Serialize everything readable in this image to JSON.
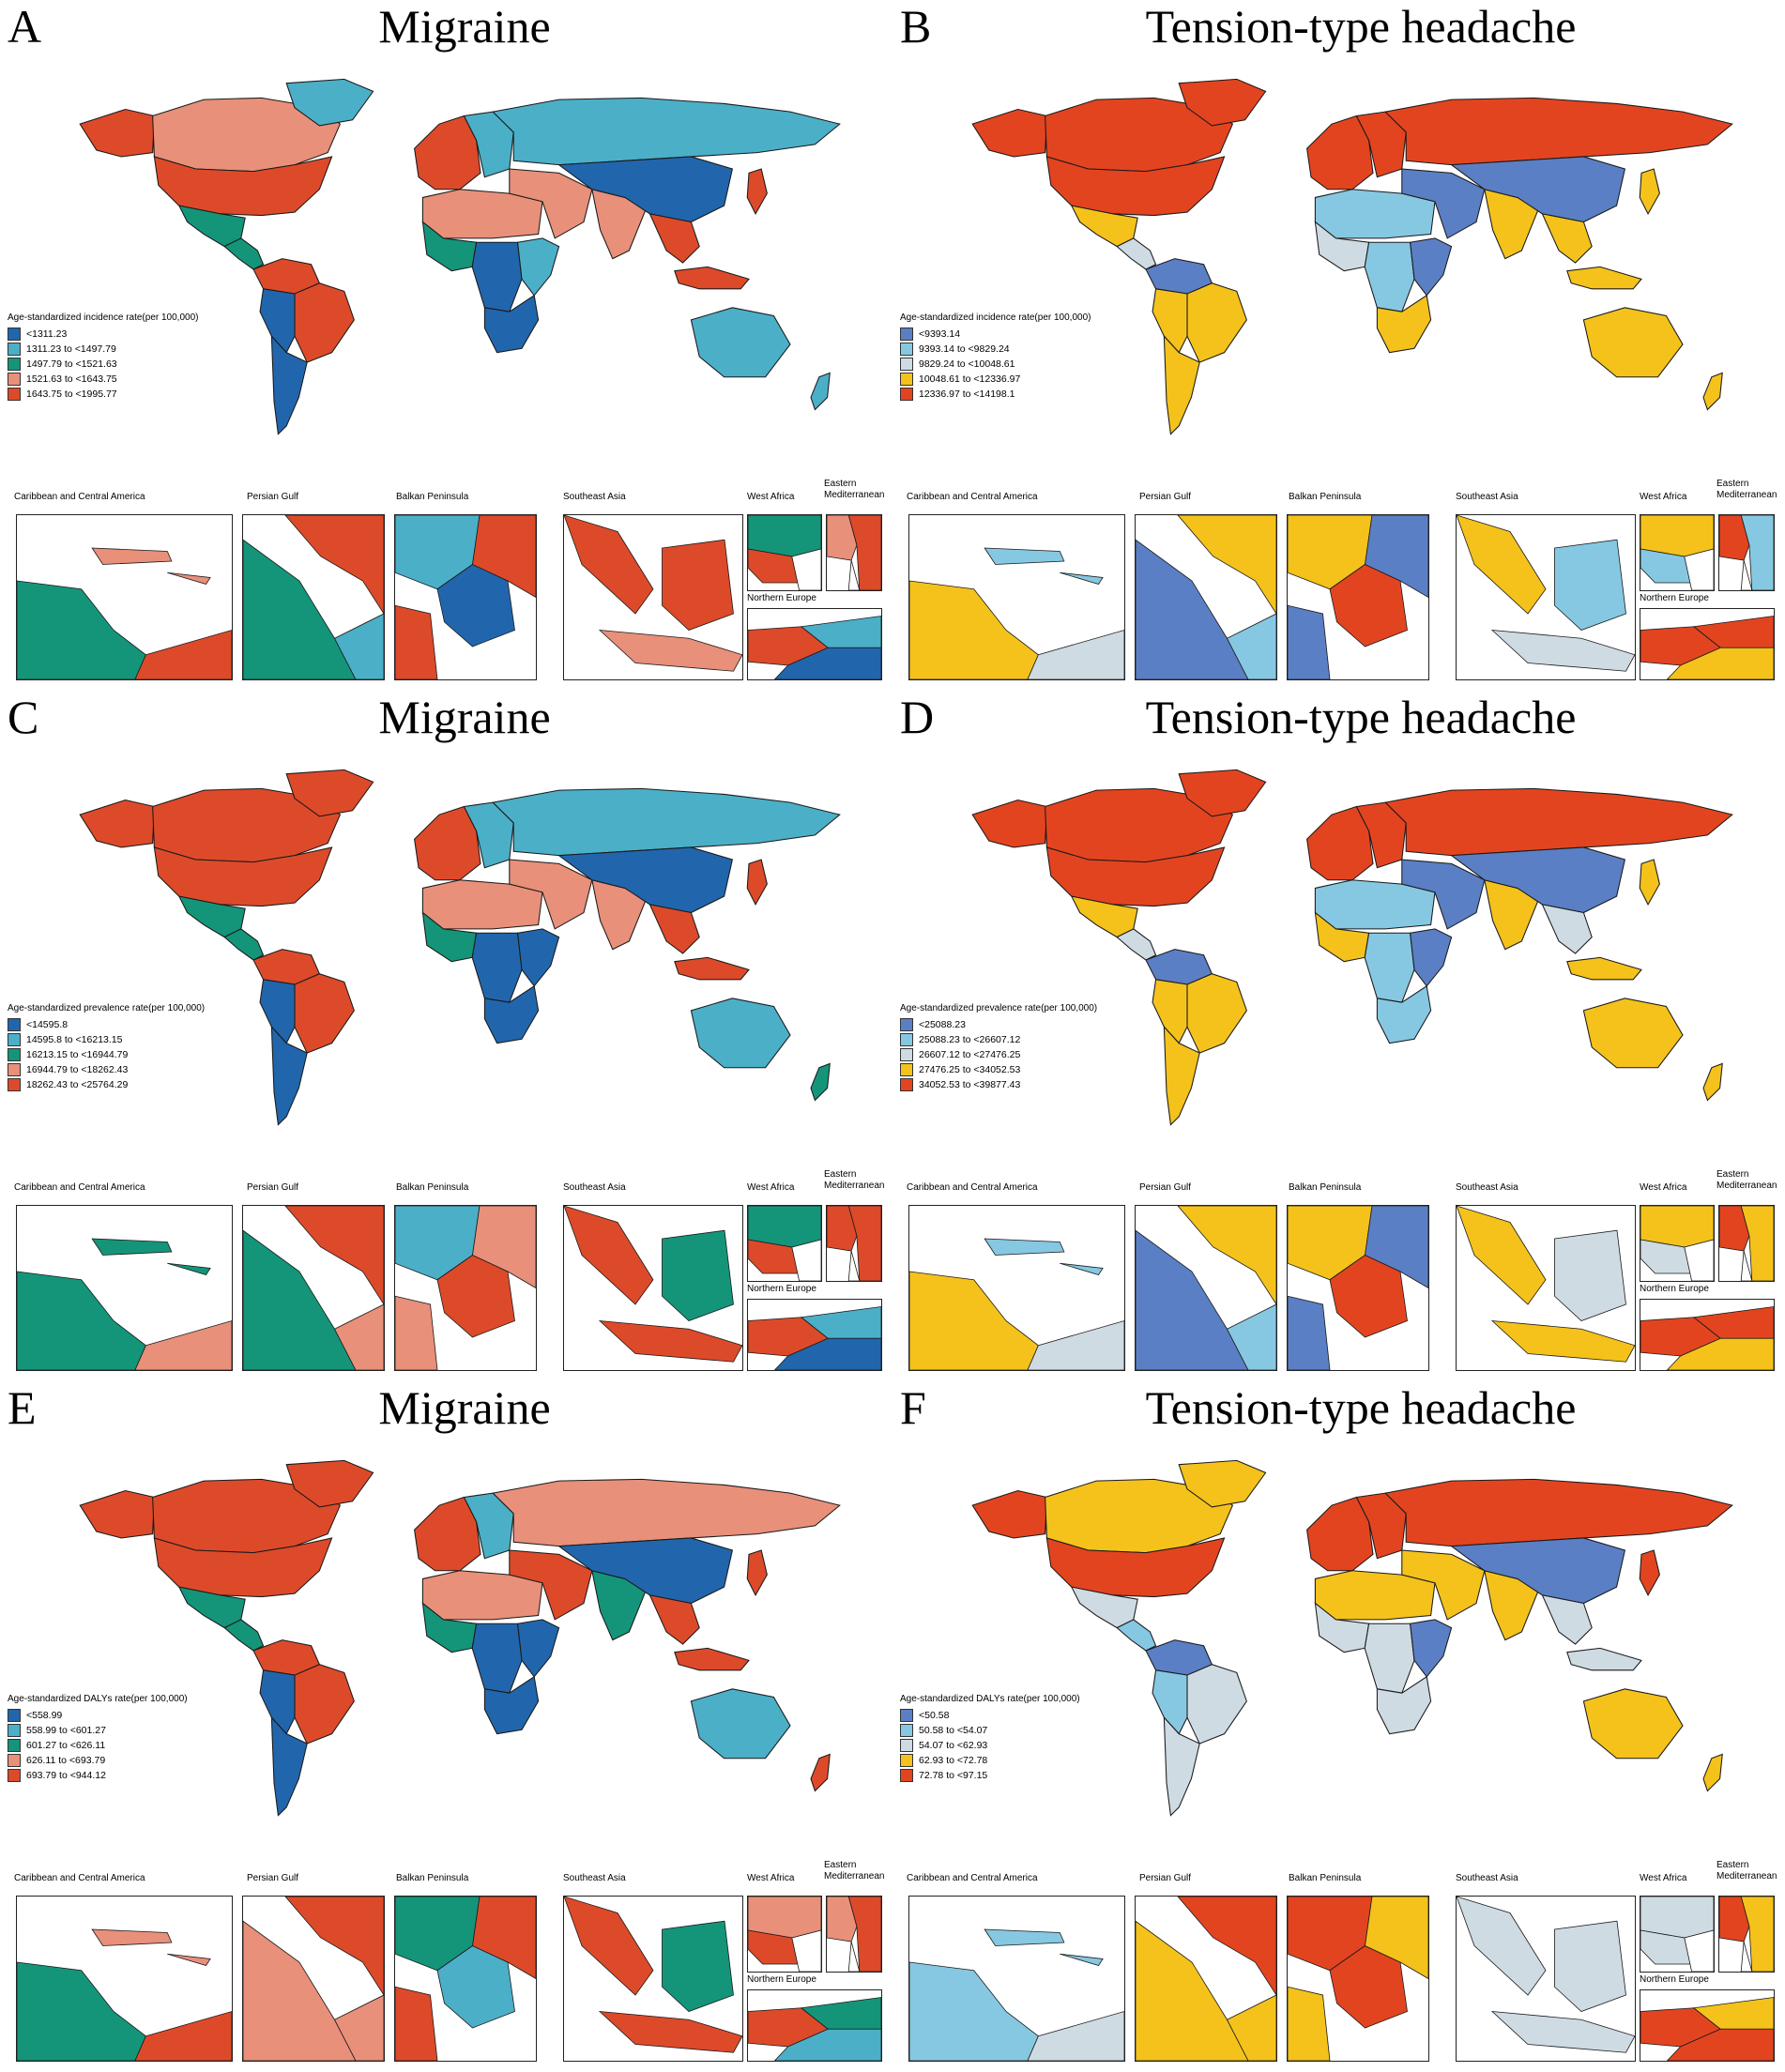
{
  "palettes": {
    "migraine": [
      "#2166ac",
      "#4bafc8",
      "#14957a",
      "#e8907a",
      "#dd4a2a"
    ],
    "tth": [
      "#5b7fc4",
      "#86c8e2",
      "#cfdbe3",
      "#f4c21b",
      "#e34420"
    ]
  },
  "inset_labels": {
    "caribbean": "Caribbean and Central America",
    "persian_gulf": "Persian Gulf",
    "balkan": "Balkan Peninsula",
    "southeast_asia": "Southeast Asia",
    "west_africa": "West Africa",
    "eastern_med": "Eastern Mediterranean",
    "northern_europe": "Northern Europe"
  },
  "panels": [
    {
      "letter": "A",
      "title": "Migraine",
      "palette": "migraine",
      "legend_title": "Age-standardized incidence rate(per 100,000)",
      "legend": [
        "<1311.23",
        "1311.23 to <1497.79",
        "1497.79 to <1521.63",
        "1521.63 to <1643.75",
        "1643.75 to <1995.77"
      ],
      "regions": {
        "canada": 3,
        "alaska": 4,
        "usa": 4,
        "mexico": 2,
        "central_america": 2,
        "south_america_n": 4,
        "brazil": 4,
        "south_america_w": 0,
        "argentina": 0,
        "greenland": 1,
        "europe_w": 4,
        "europe_e": 1,
        "russia": 1,
        "n_africa": 3,
        "w_africa": 2,
        "c_africa": 0,
        "e_africa": 1,
        "s_africa": 0,
        "middle_east": 3,
        "india": 3,
        "china": 0,
        "se_asia": 4,
        "indonesia": 4,
        "japan": 4,
        "australia": 1,
        "nz": 1
      },
      "insets": {
        "caribbean": [
          2,
          3,
          4
        ],
        "persian_gulf": [
          2,
          4,
          1
        ],
        "balkan": [
          1,
          0,
          4
        ],
        "southeast_asia": [
          4,
          4,
          3
        ],
        "west_africa": [
          2,
          4
        ],
        "eastern_med": [
          4,
          3
        ],
        "northern_europe": [
          4,
          1,
          0
        ]
      }
    },
    {
      "letter": "B",
      "title": "Tension-type headache",
      "palette": "tth",
      "legend_title": "Age-standardized incidence rate(per 100,000)",
      "legend": [
        "<9393.14",
        "9393.14 to <9829.24",
        "9829.24 to <10048.61",
        "10048.61 to <12336.97",
        "12336.97 to <14198.1"
      ],
      "regions": {
        "canada": 4,
        "alaska": 4,
        "usa": 4,
        "mexico": 3,
        "central_america": 2,
        "south_america_n": 0,
        "brazil": 3,
        "south_america_w": 3,
        "argentina": 3,
        "greenland": 4,
        "europe_w": 4,
        "europe_e": 4,
        "russia": 4,
        "n_africa": 1,
        "w_africa": 2,
        "c_africa": 1,
        "e_africa": 0,
        "s_africa": 3,
        "middle_east": 0,
        "india": 3,
        "china": 0,
        "se_asia": 3,
        "indonesia": 3,
        "japan": 3,
        "australia": 3,
        "nz": 3
      },
      "insets": {
        "caribbean": [
          3,
          1,
          2
        ],
        "persian_gulf": [
          0,
          3,
          1
        ],
        "balkan": [
          3,
          4,
          0
        ],
        "southeast_asia": [
          3,
          1,
          2
        ],
        "west_africa": [
          3,
          1
        ],
        "eastern_med": [
          1,
          4
        ],
        "northern_europe": [
          4,
          4,
          3
        ]
      }
    },
    {
      "letter": "C",
      "title": "Migraine",
      "palette": "migraine",
      "legend_title": "Age-standardized prevalence rate(per 100,000)",
      "legend": [
        "<14595.8",
        "14595.8 to <16213.15",
        "16213.15 to <16944.79",
        "16944.79 to <18262.43",
        "18262.43 to <25764.29"
      ],
      "regions": {
        "canada": 4,
        "alaska": 4,
        "usa": 4,
        "mexico": 2,
        "central_america": 2,
        "south_america_n": 4,
        "brazil": 4,
        "south_america_w": 0,
        "argentina": 0,
        "greenland": 4,
        "europe_w": 4,
        "europe_e": 1,
        "russia": 1,
        "n_africa": 3,
        "w_africa": 2,
        "c_africa": 0,
        "e_africa": 0,
        "s_africa": 0,
        "middle_east": 3,
        "india": 3,
        "china": 0,
        "se_asia": 4,
        "indonesia": 4,
        "japan": 4,
        "australia": 1,
        "nz": 2
      },
      "insets": {
        "caribbean": [
          2,
          2,
          3
        ],
        "persian_gulf": [
          2,
          4,
          3
        ],
        "balkan": [
          1,
          4,
          3
        ],
        "southeast_asia": [
          4,
          2,
          4
        ],
        "west_africa": [
          2,
          4
        ],
        "eastern_med": [
          4,
          4
        ],
        "northern_europe": [
          4,
          1,
          0
        ]
      }
    },
    {
      "letter": "D",
      "title": "Tension-type headache",
      "palette": "tth",
      "legend_title": "Age-standardized prevalence rate(per 100,000)",
      "legend": [
        "<25088.23",
        "25088.23 to <26607.12",
        "26607.12 to <27476.25",
        "27476.25 to <34052.53",
        "34052.53 to <39877.43"
      ],
      "regions": {
        "canada": 4,
        "alaska": 4,
        "usa": 4,
        "mexico": 3,
        "central_america": 2,
        "south_america_n": 0,
        "brazil": 3,
        "south_america_w": 3,
        "argentina": 3,
        "greenland": 4,
        "europe_w": 4,
        "europe_e": 4,
        "russia": 4,
        "n_africa": 1,
        "w_africa": 3,
        "c_africa": 1,
        "e_africa": 0,
        "s_africa": 1,
        "middle_east": 0,
        "india": 3,
        "china": 0,
        "se_asia": 2,
        "indonesia": 3,
        "japan": 3,
        "australia": 3,
        "nz": 3
      },
      "insets": {
        "caribbean": [
          3,
          1,
          2
        ],
        "persian_gulf": [
          0,
          3,
          1
        ],
        "balkan": [
          3,
          4,
          0
        ],
        "southeast_asia": [
          3,
          2,
          3
        ],
        "west_africa": [
          3,
          2
        ],
        "eastern_med": [
          3,
          4
        ],
        "northern_europe": [
          4,
          4,
          3
        ]
      }
    },
    {
      "letter": "E",
      "title": "Migraine",
      "palette": "migraine",
      "legend_title": "Age-standardized DALYs rate(per 100,000)",
      "legend": [
        "<558.99",
        "558.99 to <601.27",
        "601.27 to <626.11",
        "626.11 to <693.79",
        "693.79 to <944.12"
      ],
      "regions": {
        "canada": 4,
        "alaska": 4,
        "usa": 4,
        "mexico": 2,
        "central_america": 2,
        "south_america_n": 4,
        "brazil": 4,
        "south_america_w": 0,
        "argentina": 0,
        "greenland": 4,
        "europe_w": 4,
        "europe_e": 1,
        "russia": 3,
        "n_africa": 3,
        "w_africa": 2,
        "c_africa": 0,
        "e_africa": 0,
        "s_africa": 0,
        "middle_east": 4,
        "india": 2,
        "china": 0,
        "se_asia": 4,
        "indonesia": 4,
        "japan": 4,
        "australia": 1,
        "nz": 4
      },
      "insets": {
        "caribbean": [
          2,
          3,
          4
        ],
        "persian_gulf": [
          3,
          4,
          3
        ],
        "balkan": [
          2,
          1,
          4
        ],
        "southeast_asia": [
          4,
          2,
          4
        ],
        "west_africa": [
          3,
          4
        ],
        "eastern_med": [
          4,
          3
        ],
        "northern_europe": [
          4,
          2,
          1
        ]
      }
    },
    {
      "letter": "F",
      "title": "Tension-type headache",
      "palette": "tth",
      "legend_title": "Age-standardized DALYs rate(per 100,000)",
      "legend": [
        "<50.58",
        "50.58 to <54.07",
        "54.07 to <62.93",
        "62.93 to <72.78",
        "72.78 to <97.15"
      ],
      "regions": {
        "canada": 3,
        "alaska": 4,
        "usa": 4,
        "mexico": 2,
        "central_america": 1,
        "south_america_n": 0,
        "brazil": 2,
        "south_america_w": 1,
        "argentina": 2,
        "greenland": 3,
        "europe_w": 4,
        "europe_e": 4,
        "russia": 4,
        "n_africa": 3,
        "w_africa": 2,
        "c_africa": 2,
        "e_africa": 0,
        "s_africa": 2,
        "middle_east": 3,
        "india": 3,
        "china": 0,
        "se_asia": 2,
        "indonesia": 2,
        "japan": 4,
        "australia": 3,
        "nz": 3
      },
      "insets": {
        "caribbean": [
          1,
          1,
          2
        ],
        "persian_gulf": [
          3,
          4,
          3
        ],
        "balkan": [
          4,
          4,
          3
        ],
        "southeast_asia": [
          2,
          2,
          2
        ],
        "west_africa": [
          2,
          2
        ],
        "eastern_med": [
          3,
          4
        ],
        "northern_europe": [
          4,
          3,
          4
        ]
      }
    }
  ]
}
